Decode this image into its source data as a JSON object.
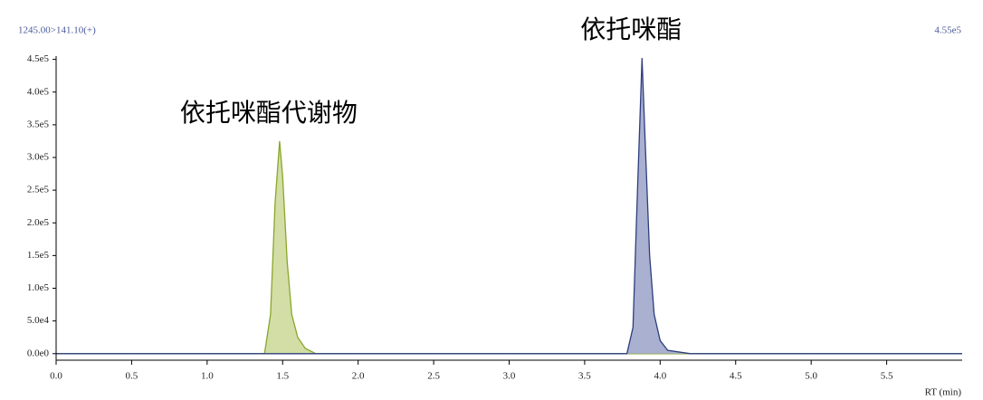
{
  "chart_data": {
    "type": "area",
    "title": "1245.00>141.10(+)",
    "subtitle": "4.55e5",
    "x_label": "RT (min)",
    "xlim": [
      0,
      6.0
    ],
    "ylim": [
      -10000,
      455000
    ],
    "xticks": [
      {
        "value": 0,
        "label": "0.0"
      },
      0.5,
      {
        "value": 1,
        "label": "1.0"
      },
      1.5,
      {
        "value": 2,
        "label": "2.0"
      },
      2.5,
      {
        "value": 3,
        "label": "3.0"
      },
      3.5,
      {
        "value": 4,
        "label": "4.0"
      },
      4.5,
      {
        "value": 5,
        "label": "5.0"
      },
      5.5
    ],
    "yticks": [
      {
        "value": 0,
        "label": "0.0e0"
      },
      {
        "value": 50000,
        "label": "5.0e4"
      },
      {
        "value": 100000,
        "label": "1.0e5"
      },
      {
        "value": 150000,
        "label": "1.5e5"
      },
      {
        "value": 200000,
        "label": "2.0e5"
      },
      {
        "value": 250000,
        "label": "2.5e5"
      },
      {
        "value": 300000,
        "label": "3.0e5"
      },
      {
        "value": 350000,
        "label": "3.5e5"
      },
      {
        "value": 400000,
        "label": "4.0e5"
      },
      {
        "value": 450000,
        "label": "4.5e5"
      }
    ],
    "series": [
      {
        "name": "依托咪酯代谢物",
        "color": "#8aa62a",
        "fill": "#d2dea6",
        "x": [
          0,
          1.38,
          1.42,
          1.45,
          1.48,
          1.5,
          1.53,
          1.56,
          1.6,
          1.65,
          1.72,
          2.0,
          6.0
        ],
        "values": [
          0,
          0,
          60000,
          230000,
          325000,
          270000,
          140000,
          60000,
          25000,
          8000,
          0,
          0,
          0
        ]
      },
      {
        "name": "依托咪酯",
        "color": "#2e3e7e",
        "fill": "#a9b0d0",
        "x": [
          0,
          3.78,
          3.82,
          3.85,
          3.88,
          3.9,
          3.93,
          3.96,
          4.0,
          4.05,
          4.2,
          6.0
        ],
        "values": [
          0,
          0,
          40000,
          250000,
          452000,
          330000,
          150000,
          60000,
          20000,
          5000,
          0,
          0
        ]
      }
    ]
  }
}
